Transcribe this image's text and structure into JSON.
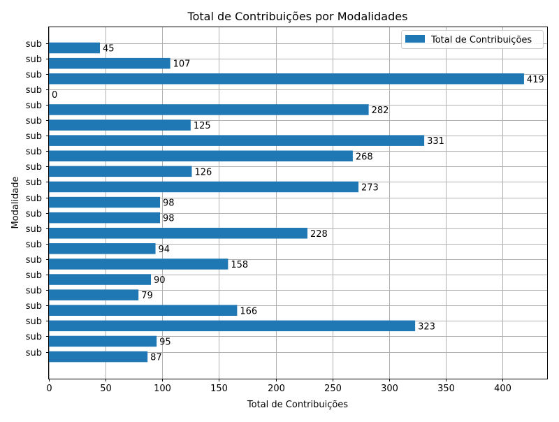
{
  "chart_data": {
    "type": "bar",
    "orientation": "horizontal",
    "title": "Total de Contribuições por Modalidades",
    "xlabel": "Total de Contribuições",
    "ylabel": "Modalidade",
    "categories": [
      "sub",
      "sub",
      "sub",
      "sub",
      "sub",
      "sub",
      "sub",
      "sub",
      "sub",
      "sub",
      "sub",
      "sub",
      "sub",
      "sub",
      "sub",
      "sub",
      "sub",
      "sub",
      "sub",
      "sub",
      "sub"
    ],
    "series": [
      {
        "name": "Total de Contribuições",
        "color": "#1f77b4",
        "values": [
          87,
          95,
          323,
          166,
          79,
          90,
          158,
          94,
          228,
          98,
          98,
          273,
          126,
          268,
          331,
          125,
          282,
          0,
          419,
          107,
          45
        ]
      }
    ],
    "data_labels": [
      "87",
      "95",
      "323",
      "166",
      "79",
      "90",
      "158",
      "94",
      "228",
      "98",
      "98",
      "273",
      "126",
      "268",
      "331",
      "125",
      "282",
      "0",
      "419",
      "107",
      "45"
    ],
    "xlim": [
      0,
      440
    ],
    "xticks": [
      0,
      50,
      100,
      150,
      200,
      250,
      300,
      350,
      400
    ],
    "xtick_labels": [
      "0",
      "50",
      "100",
      "150",
      "200",
      "250",
      "300",
      "350",
      "400"
    ],
    "grid": true,
    "legend_position": "upper-right"
  }
}
